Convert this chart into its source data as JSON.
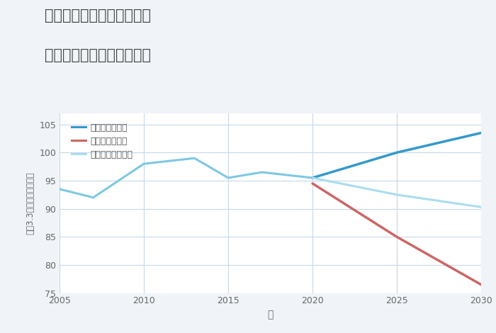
{
  "title_line1": "兵庫県神戸市西区北山台の",
  "title_line2": "中古マンションの価格推移",
  "xlabel": "年",
  "ylabel": "坪（3.3㎡）単価（万円）",
  "background_color": "#f0f4f8",
  "plot_bg_color": "#ffffff",
  "grid_color": "#c8d8e8",
  "ylim": [
    75,
    107
  ],
  "yticks": [
    75,
    80,
    85,
    90,
    95,
    100,
    105
  ],
  "xticks": [
    2005,
    2010,
    2015,
    2020,
    2025,
    2030
  ],
  "historical": {
    "years": [
      2005,
      2007,
      2010,
      2013,
      2015,
      2017,
      2020
    ],
    "values": [
      93.5,
      92.0,
      98.0,
      99.0,
      95.5,
      96.5,
      95.5
    ],
    "color": "#7ec8e3",
    "linewidth": 2.2
  },
  "good": {
    "years": [
      2020,
      2025,
      2030
    ],
    "values": [
      95.5,
      100.0,
      103.5
    ],
    "color": "#3399cc",
    "linewidth": 2.5,
    "label": "グッドシナリオ"
  },
  "bad": {
    "years": [
      2020,
      2025,
      2030
    ],
    "values": [
      94.5,
      85.0,
      76.5
    ],
    "color": "#cc6666",
    "linewidth": 2.5,
    "label": "バッドシナリオ"
  },
  "normal": {
    "years": [
      2020,
      2025,
      2030
    ],
    "values": [
      95.5,
      92.5,
      90.3
    ],
    "color": "#aaddee",
    "linewidth": 2.2,
    "label": "ノーマルシナリオ"
  }
}
